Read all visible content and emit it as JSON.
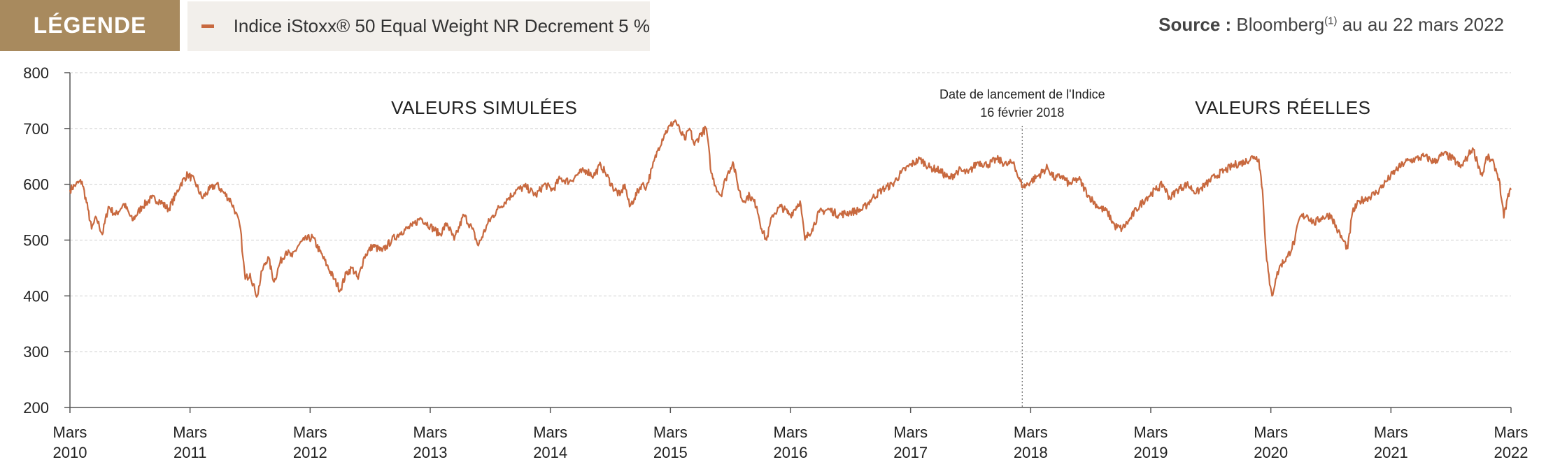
{
  "legend": {
    "title": "LÉGENDE",
    "title_bg": "#a88a5e",
    "series_label": "Indice iStoxx® 50 Equal Weight NR Decrement 5 %"
  },
  "source": {
    "label": "Source :",
    "text": "Bloomberg",
    "sup": "(1)",
    "suffix": " au au 22 mars 2022"
  },
  "zones": {
    "simulated": "VALEURS SIMULÉES",
    "real": "VALEURS RÉELLES"
  },
  "launch": {
    "line1": "Date de lancement de l'Indice",
    "line2": "16 février 2018",
    "x": 2018.13
  },
  "chart_data": {
    "type": "line",
    "x_ticks": [
      {
        "top": "Mars",
        "bottom": "2010",
        "x": 2010.2
      },
      {
        "top": "Mars",
        "bottom": "2011",
        "x": 2011.2
      },
      {
        "top": "Mars",
        "bottom": "2012",
        "x": 2012.2
      },
      {
        "top": "Mars",
        "bottom": "2013",
        "x": 2013.2
      },
      {
        "top": "Mars",
        "bottom": "2014",
        "x": 2014.2
      },
      {
        "top": "Mars",
        "bottom": "2015",
        "x": 2015.2
      },
      {
        "top": "Mars",
        "bottom": "2016",
        "x": 2016.2
      },
      {
        "top": "Mars",
        "bottom": "2017",
        "x": 2017.2
      },
      {
        "top": "Mars",
        "bottom": "2018",
        "x": 2018.2
      },
      {
        "top": "Mars",
        "bottom": "2019",
        "x": 2019.2
      },
      {
        "top": "Mars",
        "bottom": "2020",
        "x": 2020.2
      },
      {
        "top": "Mars",
        "bottom": "2021",
        "x": 2021.2
      },
      {
        "top": "Mars",
        "bottom": "2022",
        "x": 2022.2
      }
    ],
    "y_ticks": [
      200,
      300,
      400,
      500,
      600,
      700,
      800
    ],
    "xlim": [
      2010.2,
      2022.2
    ],
    "ylim": [
      200,
      800
    ],
    "grid": true,
    "series": [
      {
        "color": "#c8693f",
        "points": [
          [
            2010.2,
            590
          ],
          [
            2010.25,
            600
          ],
          [
            2010.3,
            605
          ],
          [
            2010.35,
            555
          ],
          [
            2010.38,
            520
          ],
          [
            2010.42,
            540
          ],
          [
            2010.47,
            510
          ],
          [
            2010.52,
            560
          ],
          [
            2010.58,
            545
          ],
          [
            2010.65,
            565
          ],
          [
            2010.72,
            535
          ],
          [
            2010.8,
            560
          ],
          [
            2010.88,
            575
          ],
          [
            2010.95,
            570
          ],
          [
            2011.02,
            555
          ],
          [
            2011.08,
            580
          ],
          [
            2011.12,
            600
          ],
          [
            2011.18,
            618
          ],
          [
            2011.24,
            605
          ],
          [
            2011.3,
            575
          ],
          [
            2011.36,
            590
          ],
          [
            2011.42,
            600
          ],
          [
            2011.48,
            585
          ],
          [
            2011.54,
            570
          ],
          [
            2011.58,
            550
          ],
          [
            2011.62,
            520
          ],
          [
            2011.64,
            470
          ],
          [
            2011.66,
            430
          ],
          [
            2011.7,
            440
          ],
          [
            2011.74,
            410
          ],
          [
            2011.76,
            400
          ],
          [
            2011.8,
            445
          ],
          [
            2011.85,
            470
          ],
          [
            2011.9,
            425
          ],
          [
            2011.95,
            460
          ],
          [
            2012.0,
            480
          ],
          [
            2012.05,
            470
          ],
          [
            2012.1,
            490
          ],
          [
            2012.15,
            500
          ],
          [
            2012.22,
            505
          ],
          [
            2012.28,
            480
          ],
          [
            2012.34,
            455
          ],
          [
            2012.4,
            430
          ],
          [
            2012.45,
            410
          ],
          [
            2012.5,
            440
          ],
          [
            2012.55,
            450
          ],
          [
            2012.6,
            430
          ],
          [
            2012.65,
            470
          ],
          [
            2012.72,
            490
          ],
          [
            2012.8,
            480
          ],
          [
            2012.88,
            500
          ],
          [
            2012.96,
            515
          ],
          [
            2013.05,
            525
          ],
          [
            2013.12,
            540
          ],
          [
            2013.2,
            525
          ],
          [
            2013.28,
            510
          ],
          [
            2013.34,
            530
          ],
          [
            2013.4,
            500
          ],
          [
            2013.48,
            545
          ],
          [
            2013.55,
            520
          ],
          [
            2013.6,
            490
          ],
          [
            2013.68,
            530
          ],
          [
            2013.76,
            555
          ],
          [
            2013.85,
            575
          ],
          [
            2013.92,
            590
          ],
          [
            2014.0,
            595
          ],
          [
            2014.08,
            580
          ],
          [
            2014.15,
            600
          ],
          [
            2014.22,
            590
          ],
          [
            2014.28,
            610
          ],
          [
            2014.36,
            605
          ],
          [
            2014.44,
            620
          ],
          [
            2014.5,
            625
          ],
          [
            2014.56,
            615
          ],
          [
            2014.62,
            635
          ],
          [
            2014.66,
            620
          ],
          [
            2014.72,
            595
          ],
          [
            2014.78,
            580
          ],
          [
            2014.82,
            600
          ],
          [
            2014.86,
            560
          ],
          [
            2014.9,
            575
          ],
          [
            2014.96,
            600
          ],
          [
            2015.0,
            595
          ],
          [
            2015.05,
            630
          ],
          [
            2015.1,
            665
          ],
          [
            2015.15,
            690
          ],
          [
            2015.2,
            705
          ],
          [
            2015.24,
            715
          ],
          [
            2015.28,
            695
          ],
          [
            2015.32,
            680
          ],
          [
            2015.36,
            700
          ],
          [
            2015.4,
            670
          ],
          [
            2015.45,
            690
          ],
          [
            2015.5,
            700
          ],
          [
            2015.54,
            620
          ],
          [
            2015.58,
            595
          ],
          [
            2015.62,
            580
          ],
          [
            2015.66,
            610
          ],
          [
            2015.72,
            640
          ],
          [
            2015.76,
            600
          ],
          [
            2015.8,
            570
          ],
          [
            2015.86,
            580
          ],
          [
            2015.92,
            560
          ],
          [
            2015.96,
            520
          ],
          [
            2016.0,
            500
          ],
          [
            2016.05,
            545
          ],
          [
            2016.12,
            560
          ],
          [
            2016.2,
            545
          ],
          [
            2016.28,
            570
          ],
          [
            2016.32,
            500
          ],
          [
            2016.38,
            520
          ],
          [
            2016.44,
            550
          ],
          [
            2016.52,
            555
          ],
          [
            2016.6,
            545
          ],
          [
            2016.7,
            550
          ],
          [
            2016.8,
            555
          ],
          [
            2016.88,
            575
          ],
          [
            2016.96,
            590
          ],
          [
            2017.05,
            600
          ],
          [
            2017.12,
            620
          ],
          [
            2017.2,
            635
          ],
          [
            2017.28,
            645
          ],
          [
            2017.36,
            630
          ],
          [
            2017.44,
            625
          ],
          [
            2017.52,
            610
          ],
          [
            2017.6,
            625
          ],
          [
            2017.68,
            620
          ],
          [
            2017.76,
            640
          ],
          [
            2017.84,
            635
          ],
          [
            2017.92,
            645
          ],
          [
            2018.0,
            635
          ],
          [
            2018.06,
            640
          ],
          [
            2018.1,
            610
          ],
          [
            2018.14,
            595
          ],
          [
            2018.2,
            605
          ],
          [
            2018.26,
            615
          ],
          [
            2018.34,
            630
          ],
          [
            2018.4,
            610
          ],
          [
            2018.46,
            615
          ],
          [
            2018.52,
            600
          ],
          [
            2018.6,
            610
          ],
          [
            2018.68,
            580
          ],
          [
            2018.76,
            560
          ],
          [
            2018.84,
            550
          ],
          [
            2018.9,
            525
          ],
          [
            2018.96,
            520
          ],
          [
            2019.02,
            535
          ],
          [
            2019.08,
            555
          ],
          [
            2019.16,
            575
          ],
          [
            2019.24,
            590
          ],
          [
            2019.3,
            600
          ],
          [
            2019.36,
            575
          ],
          [
            2019.42,
            590
          ],
          [
            2019.5,
            600
          ],
          [
            2019.58,
            585
          ],
          [
            2019.66,
            600
          ],
          [
            2019.74,
            615
          ],
          [
            2019.82,
            625
          ],
          [
            2019.9,
            635
          ],
          [
            2019.98,
            640
          ],
          [
            2020.06,
            650
          ],
          [
            2020.1,
            645
          ],
          [
            2020.13,
            590
          ],
          [
            2020.16,
            480
          ],
          [
            2020.19,
            420
          ],
          [
            2020.21,
            400
          ],
          [
            2020.24,
            430
          ],
          [
            2020.28,
            455
          ],
          [
            2020.34,
            470
          ],
          [
            2020.4,
            500
          ],
          [
            2020.44,
            540
          ],
          [
            2020.5,
            545
          ],
          [
            2020.56,
            530
          ],
          [
            2020.62,
            540
          ],
          [
            2020.7,
            545
          ],
          [
            2020.76,
            515
          ],
          [
            2020.8,
            500
          ],
          [
            2020.84,
            485
          ],
          [
            2020.88,
            550
          ],
          [
            2020.94,
            570
          ],
          [
            2021.0,
            575
          ],
          [
            2021.08,
            585
          ],
          [
            2021.16,
            605
          ],
          [
            2021.24,
            625
          ],
          [
            2021.32,
            640
          ],
          [
            2021.4,
            645
          ],
          [
            2021.48,
            650
          ],
          [
            2021.56,
            640
          ],
          [
            2021.64,
            655
          ],
          [
            2021.72,
            645
          ],
          [
            2021.78,
            630
          ],
          [
            2021.84,
            650
          ],
          [
            2021.88,
            665
          ],
          [
            2021.92,
            640
          ],
          [
            2021.96,
            615
          ],
          [
            2022.0,
            650
          ],
          [
            2022.06,
            635
          ],
          [
            2022.1,
            610
          ],
          [
            2022.14,
            540
          ],
          [
            2022.17,
            575
          ],
          [
            2022.2,
            590
          ]
        ]
      }
    ]
  }
}
